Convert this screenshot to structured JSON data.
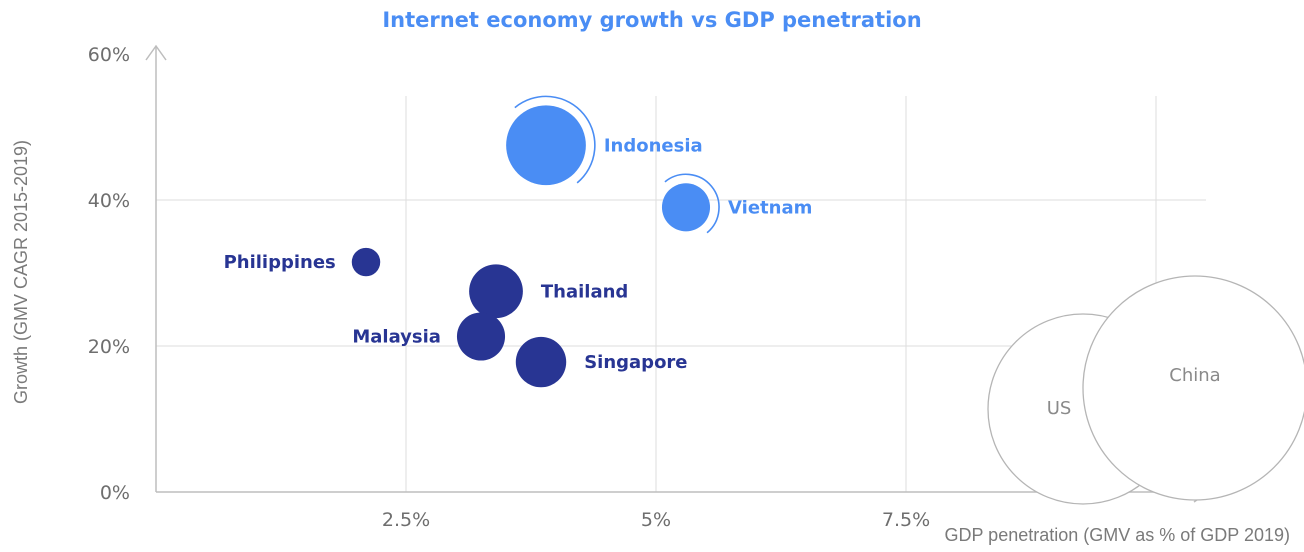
{
  "chart_data": {
    "type": "scatter",
    "title": "Internet economy growth vs GDP penetration",
    "xlabel": "GDP penetration (GMV as % of GDP 2019)",
    "ylabel": "Growth (GMV CAGR 2015-2019)",
    "xlim": [
      0,
      10.5
    ],
    "ylim": [
      0,
      60
    ],
    "x_ticks": [
      "2.5%",
      "5%",
      "7.5%"
    ],
    "y_ticks": [
      "0%",
      "20%",
      "40%",
      "60%"
    ],
    "grid": true,
    "colors": {
      "highlight": "#4a8df4",
      "primary": "#283593",
      "reference": "#b5b5b5"
    },
    "points": [
      {
        "label": "Indonesia",
        "x": 3.9,
        "y": 47.5,
        "size": 5.5,
        "group": "highlight",
        "label_side": "right",
        "halo": true
      },
      {
        "label": "Vietnam",
        "x": 5.3,
        "y": 39,
        "size": 2.0,
        "group": "highlight",
        "label_side": "right",
        "halo": true
      },
      {
        "label": "Philippines",
        "x": 2.1,
        "y": 31.5,
        "size": 0.7,
        "group": "primary",
        "label_side": "left"
      },
      {
        "label": "Thailand",
        "x": 3.4,
        "y": 27.5,
        "size": 2.5,
        "group": "primary",
        "label_side": "right"
      },
      {
        "label": "Malaysia",
        "x": 3.25,
        "y": 21.3,
        "size": 2.0,
        "group": "primary",
        "label_side": "left"
      },
      {
        "label": "Singapore",
        "x": 3.85,
        "y": 17.8,
        "size": 2.2,
        "group": "primary",
        "label_side": "right"
      }
    ],
    "reference_points": [
      {
        "label": "US"
      },
      {
        "label": "China"
      }
    ]
  }
}
